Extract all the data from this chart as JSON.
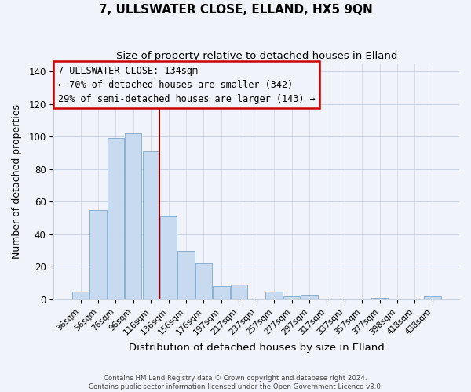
{
  "title": "7, ULLSWATER CLOSE, ELLAND, HX5 9QN",
  "subtitle": "Size of property relative to detached houses in Elland",
  "xlabel": "Distribution of detached houses by size in Elland",
  "ylabel": "Number of detached properties",
  "categories": [
    "36sqm",
    "56sqm",
    "76sqm",
    "96sqm",
    "116sqm",
    "136sqm",
    "156sqm",
    "176sqm",
    "197sqm",
    "217sqm",
    "237sqm",
    "257sqm",
    "277sqm",
    "297sqm",
    "317sqm",
    "337sqm",
    "357sqm",
    "377sqm",
    "398sqm",
    "418sqm",
    "438sqm"
  ],
  "values": [
    5,
    55,
    99,
    102,
    91,
    51,
    30,
    22,
    8,
    9,
    0,
    5,
    2,
    3,
    0,
    0,
    0,
    1,
    0,
    0,
    2
  ],
  "bar_color": "#c8daf0",
  "bar_edge_color": "#8ab0d0",
  "marker_bin_index": 5,
  "marker_line_color": "#8b0000",
  "annotation_box_edge_color": "#cc0000",
  "annotation_lines": [
    "7 ULLSWATER CLOSE: 134sqm",
    "← 70% of detached houses are smaller (342)",
    "29% of semi-detached houses are larger (143) →"
  ],
  "ylim": [
    0,
    145
  ],
  "yticks": [
    0,
    20,
    40,
    60,
    80,
    100,
    120,
    140
  ],
  "footer_lines": [
    "Contains HM Land Registry data © Crown copyright and database right 2024.",
    "Contains public sector information licensed under the Open Government Licence v3.0."
  ],
  "background_color": "#f0f4fa",
  "grid_color": "#c8d4e4"
}
